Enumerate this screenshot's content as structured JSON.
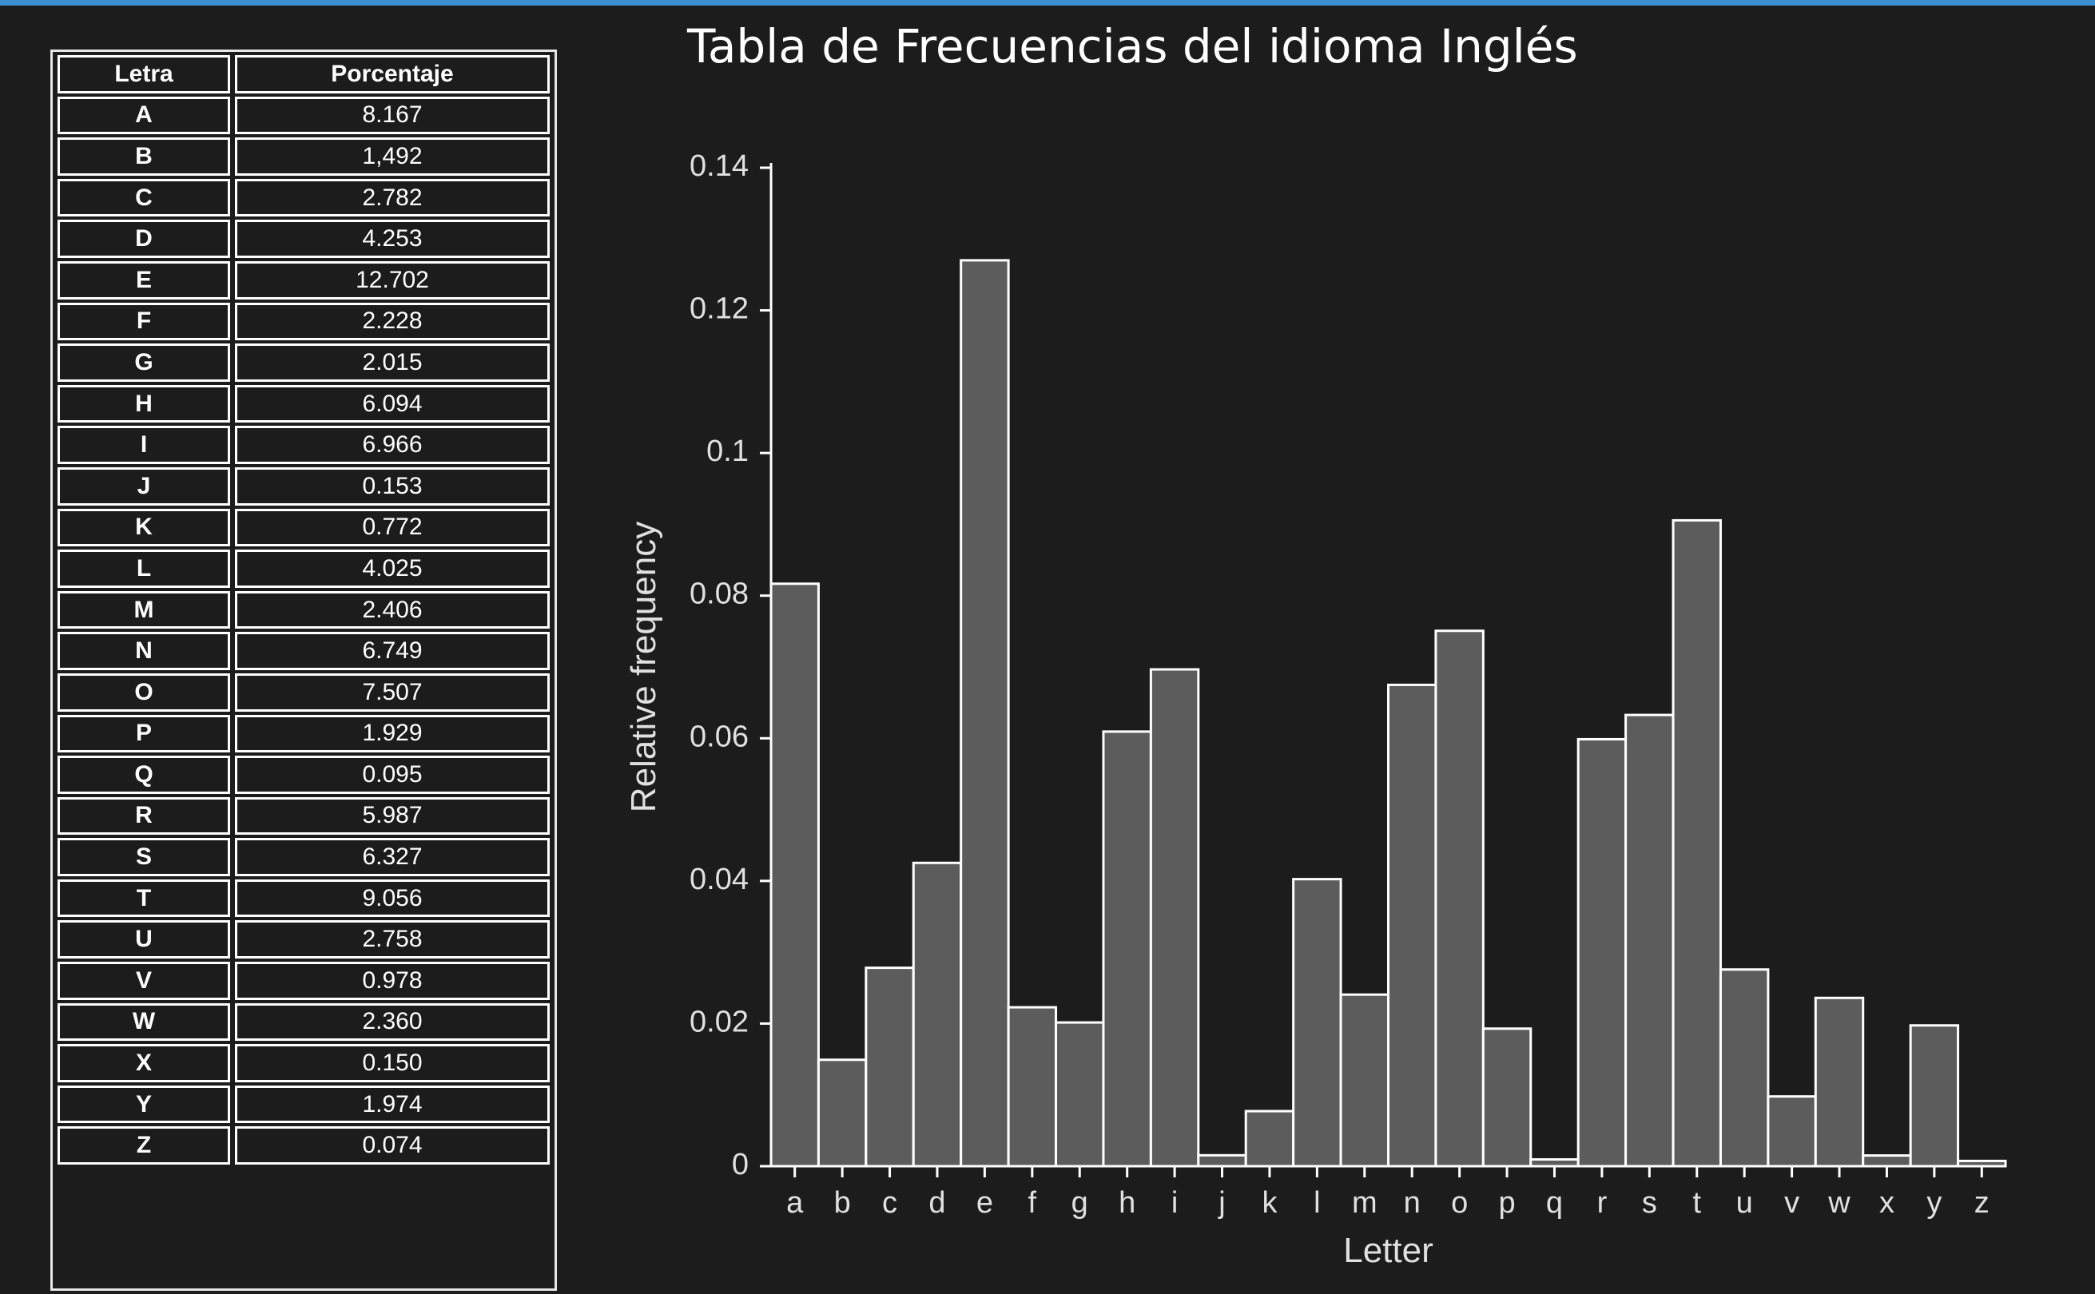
{
  "title": "Tabla de Frecuencias del idioma Inglés",
  "table": {
    "headers": [
      "Letra",
      "Porcentaje"
    ],
    "rows": [
      {
        "letter": "A",
        "value": "8.167"
      },
      {
        "letter": "B",
        "value": "1,492"
      },
      {
        "letter": "C",
        "value": "2.782"
      },
      {
        "letter": "D",
        "value": "4.253"
      },
      {
        "letter": "E",
        "value": "12.702"
      },
      {
        "letter": "F",
        "value": "2.228"
      },
      {
        "letter": "G",
        "value": "2.015"
      },
      {
        "letter": "H",
        "value": "6.094"
      },
      {
        "letter": "I",
        "value": "6.966"
      },
      {
        "letter": "J",
        "value": "0.153"
      },
      {
        "letter": "K",
        "value": "0.772"
      },
      {
        "letter": "L",
        "value": "4.025"
      },
      {
        "letter": "M",
        "value": "2.406"
      },
      {
        "letter": "N",
        "value": "6.749"
      },
      {
        "letter": "O",
        "value": "7.507"
      },
      {
        "letter": "P",
        "value": "1.929"
      },
      {
        "letter": "Q",
        "value": "0.095"
      },
      {
        "letter": "R",
        "value": "5.987"
      },
      {
        "letter": "S",
        "value": "6.327"
      },
      {
        "letter": "T",
        "value": "9.056"
      },
      {
        "letter": "U",
        "value": "2.758"
      },
      {
        "letter": "V",
        "value": "0.978"
      },
      {
        "letter": "W",
        "value": "2.360"
      },
      {
        "letter": "X",
        "value": "0.150"
      },
      {
        "letter": "Y",
        "value": "1.974"
      },
      {
        "letter": "Z",
        "value": "0.074"
      }
    ]
  },
  "chart_data": {
    "type": "bar",
    "categories": [
      "a",
      "b",
      "c",
      "d",
      "e",
      "f",
      "g",
      "h",
      "i",
      "j",
      "k",
      "l",
      "m",
      "n",
      "o",
      "p",
      "q",
      "r",
      "s",
      "t",
      "u",
      "v",
      "w",
      "x",
      "y",
      "z"
    ],
    "values": [
      0.08167,
      0.01492,
      0.02782,
      0.04253,
      0.12702,
      0.02228,
      0.02015,
      0.06094,
      0.06966,
      0.00153,
      0.00772,
      0.04025,
      0.02406,
      0.06749,
      0.07507,
      0.01929,
      0.00095,
      0.05987,
      0.06327,
      0.09056,
      0.02758,
      0.00978,
      0.0236,
      0.0015,
      0.01974,
      0.00074
    ],
    "title": "",
    "xlabel": "Letter",
    "ylabel": "Relative frequency",
    "ylim": [
      0,
      0.14
    ],
    "yticks": [
      0,
      0.02,
      0.04,
      0.06,
      0.08,
      0.1,
      0.12,
      0.14
    ],
    "ytick_labels": [
      "0",
      "0.02",
      "0.04",
      "0.06",
      "0.08",
      "0.1",
      "0.12",
      "0.14"
    ],
    "grid": false,
    "colors": {
      "bar_fill": "#5c5c5c",
      "bar_stroke": "#ffffff",
      "axis": "#ffffff",
      "text": "#e0e0e0"
    }
  }
}
